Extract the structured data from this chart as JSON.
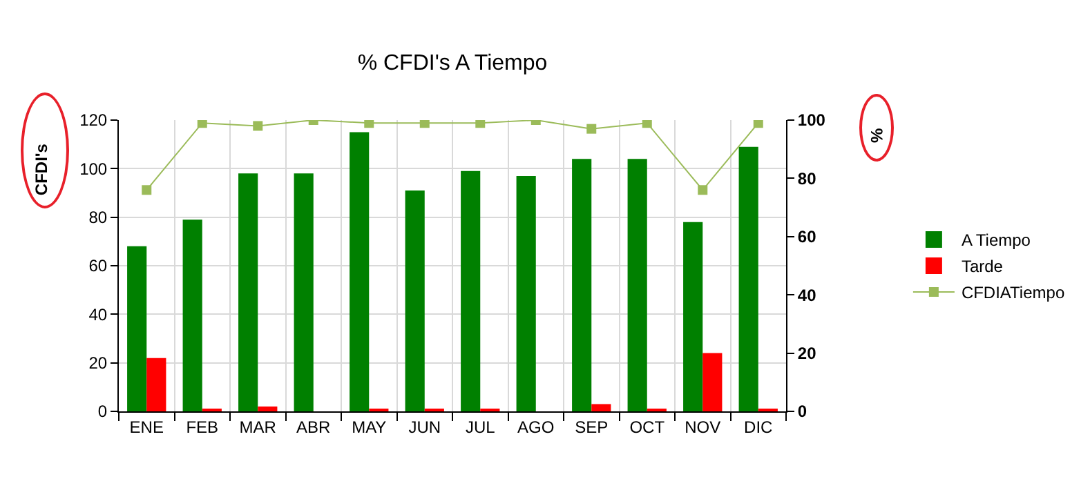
{
  "chart_data": {
    "type": "bar",
    "title": "% CFDI's A Tiempo",
    "ylabel": "CFDI's",
    "y2label": "%",
    "categories": [
      "ENE",
      "FEB",
      "MAR",
      "ABR",
      "MAY",
      "JUN",
      "JUL",
      "AGO",
      "SEP",
      "OCT",
      "NOV",
      "DIC"
    ],
    "series": [
      {
        "name": "A Tiempo",
        "color": "#008000",
        "values": [
          68,
          79,
          98,
          98,
          115,
          91,
          99,
          97,
          104,
          104,
          78,
          109
        ]
      },
      {
        "name": "Tarde",
        "color": "#ff0000",
        "values": [
          22,
          1,
          2,
          0,
          1,
          1,
          1,
          0,
          3,
          1,
          24,
          1
        ]
      },
      {
        "name": "CFDIATiempo",
        "type": "line",
        "axis": "y2",
        "color": "#9bbb59",
        "marker": "square",
        "values": [
          76,
          99,
          98,
          100,
          99,
          99,
          99,
          100,
          97,
          99,
          76,
          99
        ]
      }
    ],
    "ylim": [
      0,
      120
    ],
    "yticks": [
      0,
      20,
      40,
      60,
      80,
      100,
      120
    ],
    "y2lim": [
      0,
      100
    ],
    "y2ticks": [
      0,
      20,
      40,
      60,
      80,
      100
    ],
    "grid": true,
    "legend": "right"
  }
}
